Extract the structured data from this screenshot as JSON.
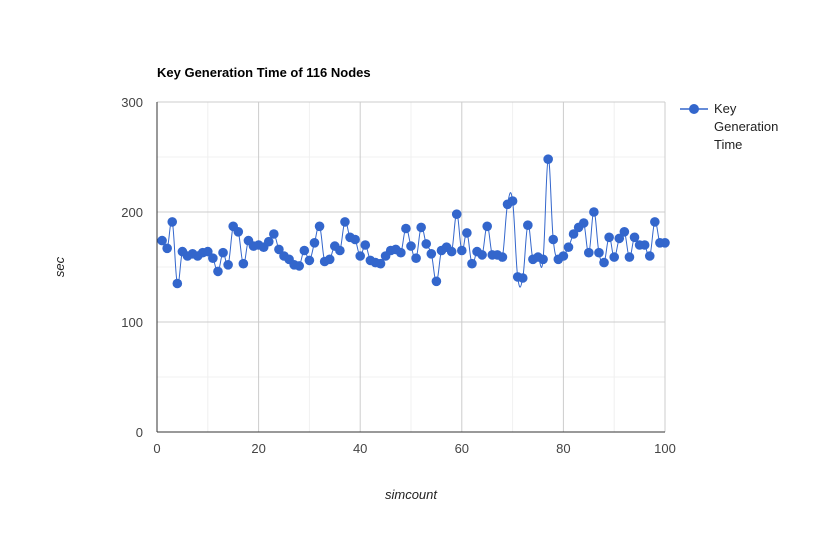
{
  "chart_data": {
    "type": "line",
    "title": "Key Generation Time of 116 Nodes",
    "xlabel": "simcount",
    "ylabel": "sec",
    "xlim": [
      0,
      100
    ],
    "ylim": [
      0,
      300
    ],
    "x_ticks": [
      "0",
      "20",
      "40",
      "60",
      "80",
      "100"
    ],
    "y_ticks": [
      "0",
      "100",
      "200",
      "300"
    ],
    "grid": true,
    "smooth": true,
    "legend_position": "right",
    "series": [
      {
        "name": "Key Generation Time",
        "color": "#3366cc",
        "marker": "circle",
        "x": [
          1,
          2,
          3,
          4,
          5,
          6,
          7,
          8,
          9,
          10,
          11,
          12,
          13,
          14,
          15,
          16,
          17,
          18,
          19,
          20,
          21,
          22,
          23,
          24,
          25,
          26,
          27,
          28,
          29,
          30,
          31,
          32,
          33,
          34,
          35,
          36,
          37,
          38,
          39,
          40,
          41,
          42,
          43,
          44,
          45,
          46,
          47,
          48,
          49,
          50,
          51,
          52,
          53,
          54,
          55,
          56,
          57,
          58,
          59,
          60,
          61,
          62,
          63,
          64,
          65,
          66,
          67,
          68,
          69,
          70,
          71,
          72,
          73,
          74,
          75,
          76,
          77,
          78,
          79,
          80,
          81,
          82,
          83,
          84,
          85,
          86,
          87,
          88,
          89,
          90,
          91,
          92,
          93,
          94,
          95,
          96,
          97,
          98,
          99,
          100
        ],
        "y": [
          174,
          167,
          191,
          135,
          164,
          160,
          162,
          160,
          163,
          164,
          158,
          146,
          163,
          152,
          187,
          182,
          153,
          174,
          169,
          170,
          168,
          173,
          180,
          166,
          160,
          157,
          152,
          151,
          165,
          156,
          172,
          187,
          155,
          157,
          169,
          165,
          191,
          177,
          175,
          160,
          170,
          156,
          154,
          153,
          160,
          165,
          166,
          163,
          185,
          169,
          158,
          186,
          171,
          162,
          137,
          165,
          168,
          164,
          198,
          165,
          181,
          153,
          164,
          161,
          187,
          161,
          161,
          159,
          207,
          210,
          141,
          140,
          188,
          157,
          159,
          157,
          248,
          175,
          157,
          160,
          168,
          180,
          186,
          190,
          163,
          200,
          163,
          154,
          177,
          159,
          176,
          182,
          159,
          177,
          170,
          170,
          160,
          191,
          172,
          172
        ]
      }
    ]
  }
}
